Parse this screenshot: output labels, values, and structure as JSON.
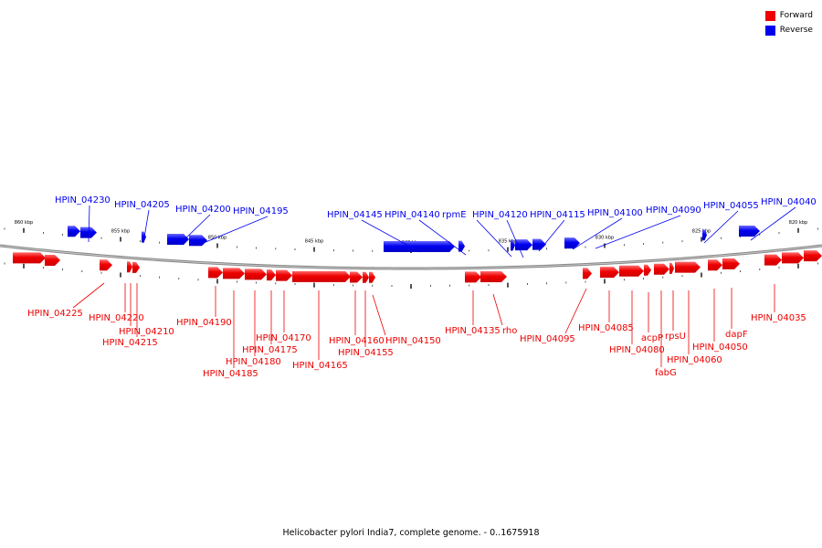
{
  "legend": {
    "forward": {
      "label": "Forward",
      "color": "#ee0000"
    },
    "reverse": {
      "label": "Reverse",
      "color": "#0000ee"
    }
  },
  "caption": "Helicobacter pylori India7, complete genome. - 0..1675918",
  "scale_labels": [
    "860 kbp",
    "855 kbp",
    "850 kbp",
    "845 kbp",
    "840 kbp",
    "835 kbp",
    "830 kbp",
    "825 kbp",
    "820 kbp"
  ],
  "reverse_labels": [
    "HPIN_04230",
    "HPIN_04205",
    "HPIN_04200",
    "HPIN_04195",
    "HPIN_04145",
    "HPIN_04140",
    "rpmE",
    "HPIN_04120",
    "HPIN_04115",
    "HPIN_04100",
    "HPIN_04090",
    "HPIN_04055",
    "HPIN_04040"
  ],
  "forward_labels": [
    "HPIN_04225",
    "HPIN_04220",
    "HPIN_04210",
    "HPIN_04215",
    "HPIN_04190",
    "HPIN_04185",
    "HPIN_04180",
    "HPIN_04175",
    "HPIN_04170",
    "HPIN_04165",
    "HPIN_04160",
    "HPIN_04155",
    "HPIN_04150",
    "HPIN_04135",
    "rho",
    "HPIN_04095",
    "HPIN_04085",
    "HPIN_04080",
    "acpP",
    "fabG",
    "rpsU",
    "HPIN_04060",
    "HPIN_04050",
    "dapF",
    "HPIN_04035"
  ]
}
